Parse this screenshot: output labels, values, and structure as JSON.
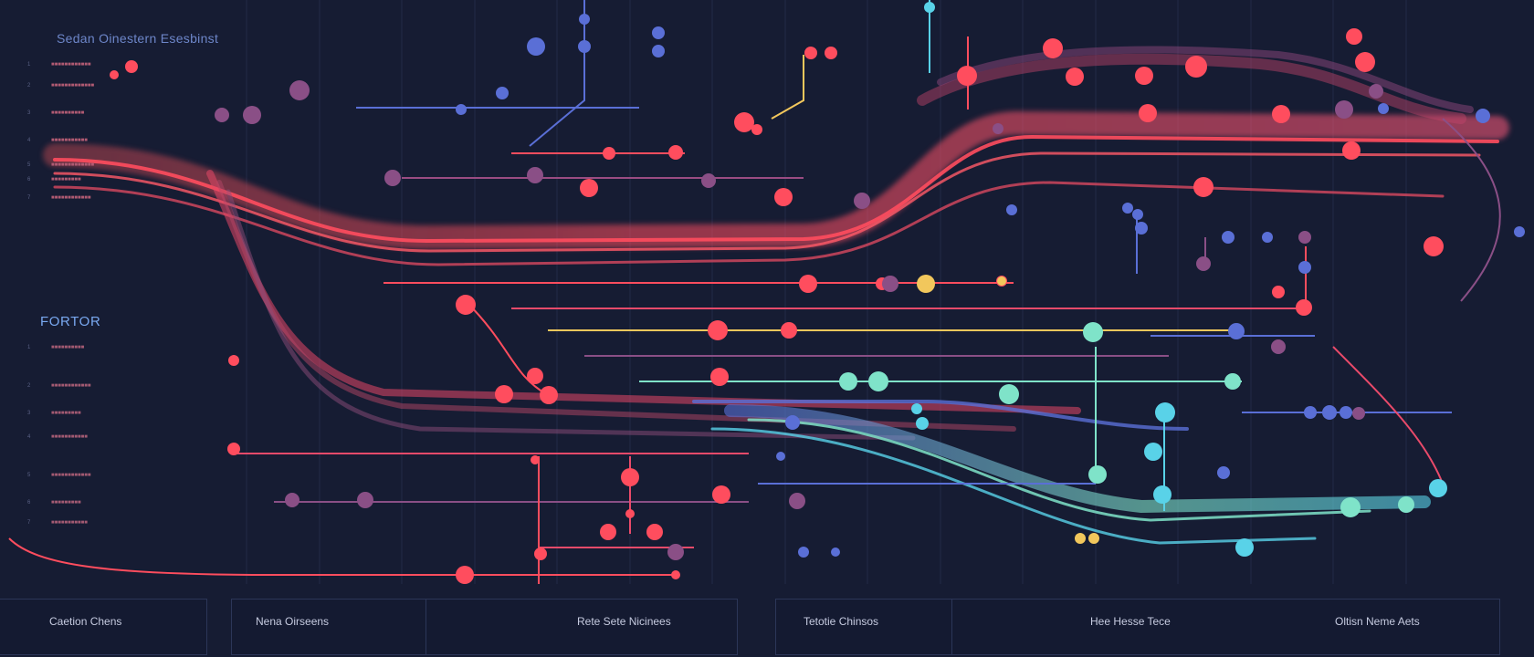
{
  "header": {
    "title": "Sedan Oinestern Esesbinst",
    "section_title": "FORTOR"
  },
  "side_panel_top": {
    "rows": [
      {
        "num": "1",
        "label": "■■■■■■■■■■■■"
      },
      {
        "num": "2",
        "label": "■■■■■■■■■■■■■"
      },
      {
        "num": "3",
        "label": "■■■■■■■■■■"
      },
      {
        "num": "4",
        "label": "■■■■■■■■■■■"
      },
      {
        "num": "5",
        "label": "■■■■■■■■■■■■■"
      },
      {
        "num": "6",
        "label": "■■■■■■■■■"
      },
      {
        "num": "7",
        "label": "■■■■■■■■■■■■"
      }
    ]
  },
  "side_panel_bottom": {
    "rows": [
      {
        "num": "1",
        "label": "■■■■■■■■■■"
      },
      {
        "num": "2",
        "label": "■■■■■■■■■■■■"
      },
      {
        "num": "3",
        "label": "■■■■■■■■■"
      },
      {
        "num": "4",
        "label": "■■■■■■■■■■■"
      },
      {
        "num": "5",
        "label": "■■■■■■■■■■■■"
      },
      {
        "num": "6",
        "label": "■■■■■■■■■"
      },
      {
        "num": "7",
        "label": "■■■■■■■■■■■"
      }
    ]
  },
  "bottom_bar": {
    "tabs": [
      {
        "label": "Caetion Chens"
      },
      {
        "label": "Nena Oirseens"
      },
      {
        "label": "Rete Sete Nicinees"
      },
      {
        "label": "Tetotie Chinsos"
      },
      {
        "label": "Hee Hesse Tece"
      },
      {
        "label": "Oltisn Neme Aets"
      }
    ]
  },
  "colors": {
    "background": "#161c33",
    "red": "#ff4d5e",
    "pink": "#e94a6a",
    "purple": "#8a4f86",
    "blue": "#5a6fd6",
    "teal": "#7fe3c9",
    "cyan": "#59d2e8",
    "yellow": "#f2c75c"
  }
}
